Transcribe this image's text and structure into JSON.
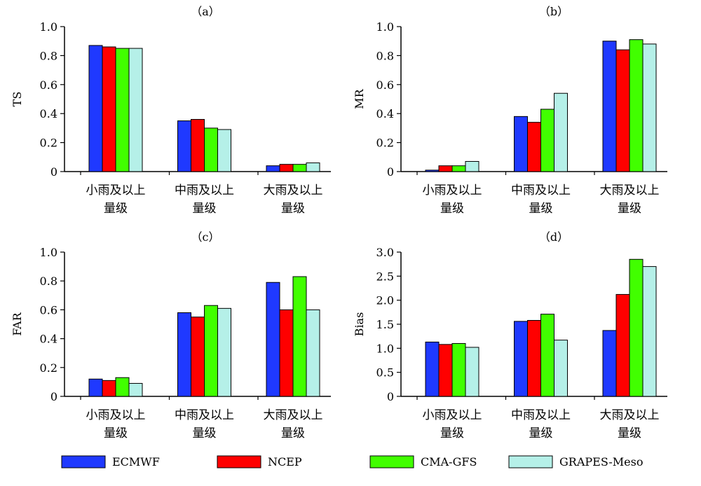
{
  "legend": [
    {
      "name": "ECMWF",
      "color": "#1f39ff"
    },
    {
      "name": "NCEP",
      "color": "#ff0000"
    },
    {
      "name": "CMA-GFS",
      "color": "#41ff00"
    },
    {
      "name": "GRAPES-Meso",
      "color": "#b5f0e8"
    }
  ],
  "chart_data": [
    {
      "type": "bar",
      "title": "（a）",
      "ylabel": "TS",
      "categories": [
        [
          "小雨及以上",
          "量级"
        ],
        [
          "中雨及以上",
          "量级"
        ],
        [
          "大雨及以上",
          "量级"
        ]
      ],
      "ylim": [
        0,
        1.0
      ],
      "yticks": [
        "0",
        "0.2",
        "0.4",
        "0.6",
        "0.8",
        "1.0"
      ],
      "series": [
        {
          "name": "ECMWF",
          "values": [
            0.87,
            0.35,
            0.04
          ]
        },
        {
          "name": "NCEP",
          "values": [
            0.86,
            0.36,
            0.05
          ]
        },
        {
          "name": "CMA-GFS",
          "values": [
            0.85,
            0.3,
            0.05
          ]
        },
        {
          "name": "GRAPES-Meso",
          "values": [
            0.85,
            0.29,
            0.06
          ]
        }
      ]
    },
    {
      "type": "bar",
      "title": "（b）",
      "ylabel": "MR",
      "categories": [
        [
          "小雨及以上",
          "量级"
        ],
        [
          "中雨及以上",
          "量级"
        ],
        [
          "大雨及以上",
          "量级"
        ]
      ],
      "ylim": [
        0,
        1.0
      ],
      "yticks": [
        "0",
        "0.2",
        "0.4",
        "0.6",
        "0.8",
        "1.0"
      ],
      "series": [
        {
          "name": "ECMWF",
          "values": [
            0.01,
            0.38,
            0.9
          ]
        },
        {
          "name": "NCEP",
          "values": [
            0.04,
            0.34,
            0.84
          ]
        },
        {
          "name": "CMA-GFS",
          "values": [
            0.04,
            0.43,
            0.91
          ]
        },
        {
          "name": "GRAPES-Meso",
          "values": [
            0.07,
            0.54,
            0.88
          ]
        }
      ]
    },
    {
      "type": "bar",
      "title": "（c）",
      "ylabel": "FAR",
      "categories": [
        [
          "小雨及以上",
          "量级"
        ],
        [
          "中雨及以上",
          "量级"
        ],
        [
          "大雨及以上",
          "量级"
        ]
      ],
      "ylim": [
        0,
        1.0
      ],
      "yticks": [
        "0",
        "0.2",
        "0.4",
        "0.6",
        "0.8",
        "1.0"
      ],
      "series": [
        {
          "name": "ECMWF",
          "values": [
            0.12,
            0.58,
            0.79
          ]
        },
        {
          "name": "NCEP",
          "values": [
            0.11,
            0.55,
            0.6
          ]
        },
        {
          "name": "CMA-GFS",
          "values": [
            0.13,
            0.63,
            0.83
          ]
        },
        {
          "name": "GRAPES-Meso",
          "values": [
            0.09,
            0.61,
            0.6
          ]
        }
      ]
    },
    {
      "type": "bar",
      "title": "（d）",
      "ylabel": "Bias",
      "categories": [
        [
          "小雨及以上",
          "量级"
        ],
        [
          "中雨及以上",
          "量级"
        ],
        [
          "大雨及以上",
          "量级"
        ]
      ],
      "ylim": [
        0,
        3.0
      ],
      "yticks": [
        "0",
        "0.5",
        "1.0",
        "1.5",
        "2.0",
        "2.5",
        "3.0"
      ],
      "series": [
        {
          "name": "ECMWF",
          "values": [
            1.13,
            1.56,
            1.37
          ]
        },
        {
          "name": "NCEP",
          "values": [
            1.08,
            1.58,
            2.12
          ]
        },
        {
          "name": "CMA-GFS",
          "values": [
            1.1,
            1.71,
            2.85
          ]
        },
        {
          "name": "GRAPES-Meso",
          "values": [
            1.02,
            1.17,
            2.7
          ]
        }
      ]
    }
  ]
}
